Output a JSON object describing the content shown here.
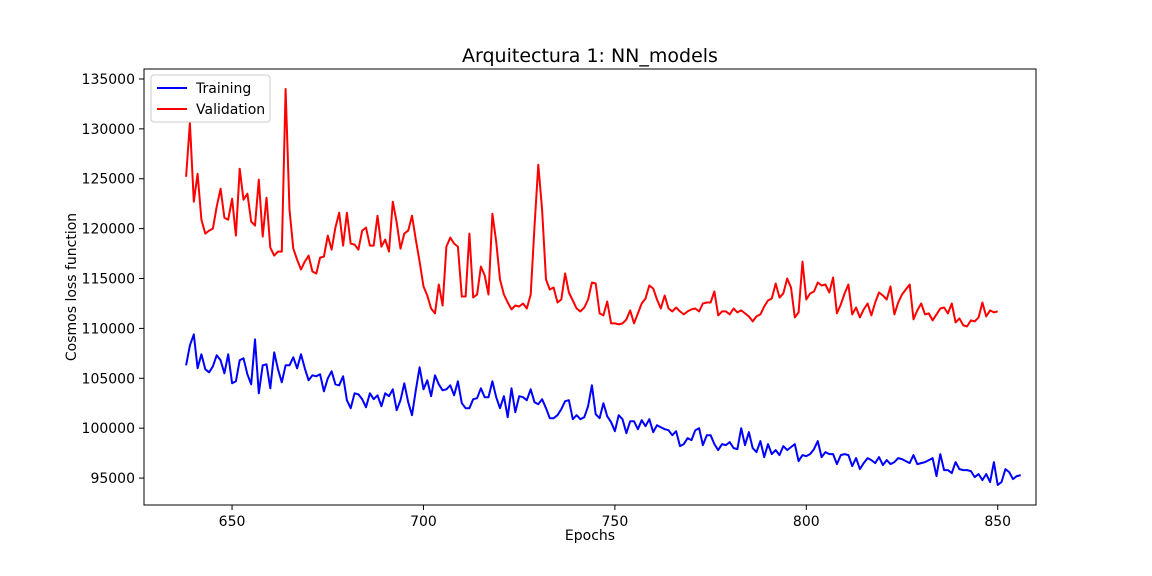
{
  "chart_data": {
    "type": "line",
    "title": "Arquitectura 1: NN_models",
    "xlabel": "Epochs",
    "ylabel": "Cosmos loss function",
    "xlim": [
      627,
      860
    ],
    "ylim": [
      92300,
      136000
    ],
    "xticks": [
      650,
      700,
      750,
      800,
      850
    ],
    "yticks": [
      95000,
      100000,
      105000,
      110000,
      115000,
      120000,
      125000,
      130000,
      135000
    ],
    "legend_position": "top-left",
    "grid": false,
    "series": [
      {
        "name": "Training",
        "color": "#0000ff",
        "x_start": 638,
        "x_step": 1,
        "values": [
          106300,
          108300,
          109400,
          106000,
          107400,
          105900,
          105600,
          106200,
          107300,
          106800,
          105500,
          107400,
          104500,
          104700,
          106800,
          107000,
          105400,
          104400,
          108900,
          103500,
          106300,
          106400,
          104000,
          107600,
          105900,
          104600,
          106300,
          106300,
          107100,
          106000,
          107400,
          106000,
          104800,
          105300,
          105200,
          105400,
          103700,
          105000,
          105700,
          104400,
          104300,
          105200,
          102800,
          102000,
          103500,
          103400,
          102900,
          102100,
          103500,
          102900,
          103300,
          102200,
          103500,
          103200,
          103900,
          101800,
          102800,
          104500,
          102600,
          101300,
          103800,
          106100,
          103900,
          104800,
          103200,
          105300,
          104400,
          103800,
          103900,
          104300,
          103300,
          104700,
          102500,
          102000,
          102000,
          102900,
          103000,
          104000,
          103100,
          103100,
          104700,
          103100,
          102000,
          103200,
          101100,
          104000,
          101600,
          103200,
          103100,
          102800,
          103900,
          102600,
          102400,
          102900,
          102000,
          101000,
          101000,
          101300,
          101900,
          102700,
          102800,
          100900,
          101300,
          100900,
          101100,
          102200,
          104300,
          101400,
          101000,
          102500,
          101200,
          100600,
          99700,
          101300,
          100900,
          99500,
          100700,
          100700,
          99900,
          100800,
          100200,
          100900,
          99600,
          100300,
          100100,
          99900,
          99800,
          99300,
          99700,
          98200,
          98400,
          99000,
          98800,
          99800,
          100000,
          98300,
          99300,
          99300,
          98400,
          97800,
          98400,
          98300,
          98600,
          98000,
          97900,
          100000,
          98300,
          99600,
          98000,
          97600,
          98700,
          97100,
          98400,
          97400,
          97800,
          97300,
          98200,
          97800,
          98100,
          98400,
          96700,
          97300,
          97200,
          97400,
          97900,
          98700,
          97100,
          97600,
          97400,
          97400,
          96400,
          97300,
          97400,
          97300,
          96200,
          97000,
          95900,
          96500,
          97000,
          96800,
          96500,
          97100,
          96300,
          96800,
          96400,
          96600,
          97000,
          96900,
          96700,
          96500,
          97300,
          96400,
          96500,
          96600,
          96800,
          97000,
          95200,
          97400,
          95800,
          95800,
          95500,
          96600,
          95900,
          95800,
          95800,
          95700,
          95100,
          95400,
          94800,
          95400,
          94600,
          96600,
          94300,
          94600,
          95900,
          95600,
          94900,
          95200,
          95300
        ]
      },
      {
        "name": "Validation",
        "color": "#ff0000",
        "x_start": 638,
        "x_step": 1,
        "values": [
          125200,
          130600,
          122700,
          125500,
          120900,
          119500,
          119800,
          120000,
          122200,
          124000,
          121100,
          120900,
          123000,
          119300,
          126000,
          122900,
          123500,
          120700,
          120300,
          124900,
          119200,
          123100,
          118100,
          117300,
          117700,
          117700,
          134000,
          121900,
          118000,
          116900,
          115900,
          116700,
          117300,
          115700,
          115500,
          117100,
          117200,
          119300,
          117900,
          120100,
          121600,
          118300,
          121600,
          118500,
          118400,
          117900,
          119800,
          120100,
          118300,
          118300,
          121300,
          118200,
          118900,
          117700,
          122700,
          120600,
          118000,
          119500,
          119800,
          121300,
          118900,
          116700,
          114200,
          113300,
          112000,
          111500,
          114400,
          112300,
          118200,
          119100,
          118500,
          118200,
          113200,
          113200,
          119500,
          113100,
          113400,
          116200,
          115300,
          113400,
          121500,
          118700,
          114900,
          113400,
          112600,
          111900,
          112300,
          112200,
          112500,
          112000,
          113400,
          120200,
          126400,
          121900,
          114900,
          113900,
          114100,
          112600,
          112900,
          115500,
          113600,
          112800,
          112000,
          111700,
          112100,
          112900,
          114600,
          114500,
          111500,
          111300,
          112700,
          110500,
          110500,
          110400,
          110500,
          110900,
          111800,
          110500,
          111500,
          112500,
          113000,
          114300,
          114000,
          112900,
          112000,
          113300,
          112000,
          111700,
          112100,
          111700,
          111400,
          111700,
          111900,
          112000,
          111700,
          112500,
          112600,
          112600,
          113700,
          111300,
          111700,
          111700,
          111400,
          112000,
          111600,
          111800,
          111500,
          111200,
          110700,
          111200,
          111400,
          112200,
          112800,
          113000,
          114500,
          113100,
          113500,
          115000,
          114100,
          111100,
          111600,
          116700,
          112900,
          113500,
          113700,
          114600,
          114300,
          114400,
          113600,
          115100,
          111500,
          112400,
          113500,
          114400,
          111400,
          112100,
          111100,
          111900,
          112500,
          111300,
          112600,
          113600,
          113300,
          112900,
          114200,
          111400,
          112600,
          113400,
          113900,
          114400,
          110900,
          111800,
          112500,
          111400,
          111500,
          110800,
          111400,
          112000,
          112100,
          111500,
          112500,
          110600,
          111000,
          110300,
          110200,
          110800,
          110700,
          111100,
          112600,
          111200,
          111800,
          111600,
          111700
        ]
      }
    ]
  }
}
